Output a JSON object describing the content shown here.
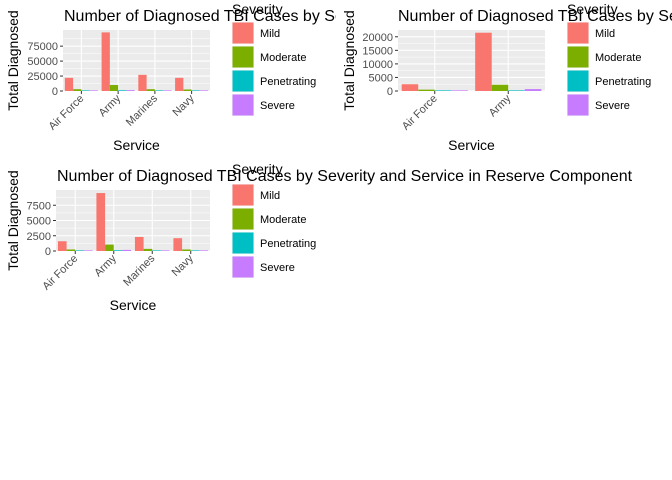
{
  "chart_data": [
    {
      "type": "bar",
      "title": "Number of Diagnosed TBI Cases by Severity and Service in Active Component",
      "xlabel": "Service",
      "ylabel": "Total Diagnosed",
      "categories": [
        "Air Force",
        "Army",
        "Marines",
        "Navy"
      ],
      "series": [
        {
          "name": "Mild",
          "values": [
            22000,
            98000,
            27000,
            22000
          ]
        },
        {
          "name": "Moderate",
          "values": [
            3000,
            10000,
            3000,
            2500
          ]
        },
        {
          "name": "Penetrating",
          "values": [
            200,
            1200,
            300,
            150
          ]
        },
        {
          "name": "Severe",
          "values": [
            400,
            1400,
            300,
            250
          ]
        }
      ],
      "yticks": [
        0,
        25000,
        50000,
        75000
      ],
      "ytick_labels": [
        "0",
        "25000",
        "50000",
        "75000"
      ],
      "ylim": [
        0,
        102000
      ],
      "legend": {
        "title": "Severity",
        "placement": "right"
      }
    },
    {
      "type": "bar",
      "title": "Number of Diagnosed TBI Cases by Severity and Service in National Guard",
      "xlabel": "Service",
      "ylabel": "Total Diagnosed",
      "categories": [
        "Air Force",
        "Army"
      ],
      "series": [
        {
          "name": "Mild",
          "values": [
            2500,
            21500
          ]
        },
        {
          "name": "Moderate",
          "values": [
            500,
            2300
          ]
        },
        {
          "name": "Penetrating",
          "values": [
            20,
            200
          ]
        },
        {
          "name": "Severe",
          "values": [
            30,
            700
          ]
        }
      ],
      "yticks": [
        0,
        5000,
        10000,
        15000,
        20000
      ],
      "ytick_labels": [
        "0",
        "5000",
        "10000",
        "15000",
        "20000"
      ],
      "ylim": [
        0,
        22500
      ],
      "legend": {
        "title": "Severity",
        "placement": "right"
      }
    },
    {
      "type": "bar",
      "title": "Number of Diagnosed TBI Cases by Severity and Service in Reserve Component",
      "xlabel": "Service",
      "ylabel": "Total Diagnosed",
      "categories": [
        "Air Force",
        "Army",
        "Marines",
        "Navy"
      ],
      "series": [
        {
          "name": "Mild",
          "values": [
            1600,
            9500,
            2300,
            2100
          ]
        },
        {
          "name": "Moderate",
          "values": [
            250,
            1050,
            350,
            250
          ]
        },
        {
          "name": "Penetrating",
          "values": [
            20,
            120,
            40,
            20
          ]
        },
        {
          "name": "Severe",
          "values": [
            40,
            180,
            60,
            30
          ]
        }
      ],
      "yticks": [
        0,
        2500,
        5000,
        7500
      ],
      "ytick_labels": [
        "0",
        "2500",
        "5000",
        "7500"
      ],
      "ylim": [
        0,
        10000
      ],
      "legend": {
        "title": "Severity",
        "placement": "right"
      }
    }
  ],
  "colors": {
    "Mild": "#F8766D",
    "Moderate": "#7CAE00",
    "Penetrating": "#00BFC4",
    "Severe": "#C77CFF",
    "panel": "#EBEBEB",
    "grid": "#FFFFFF",
    "tick_text": "#4D4D4D"
  }
}
